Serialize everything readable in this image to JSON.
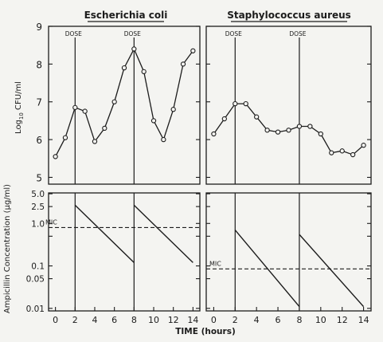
{
  "chart_data": [
    {
      "type": "line",
      "title": "Escherichia coli",
      "ylabel": "Log10 CFU/ml",
      "ylabel_parts": [
        "Log",
        "10",
        " CFU/ml"
      ],
      "ylim": [
        5,
        9
      ],
      "yticks": [
        5,
        6,
        7,
        8,
        9
      ],
      "xlim": [
        0,
        14
      ],
      "annotations": [
        "DOSE",
        "DOSE"
      ],
      "dose_x": [
        2,
        8
      ],
      "series": [
        {
          "x": [
            0,
            1,
            2,
            3,
            4,
            5,
            6,
            7,
            8,
            9,
            10,
            11,
            12,
            13,
            14
          ],
          "values": [
            5.55,
            6.05,
            6.85,
            6.75,
            5.95,
            6.3,
            7.0,
            7.9,
            8.4,
            7.8,
            6.5,
            6.0,
            6.8,
            8.0,
            8.35
          ]
        }
      ]
    },
    {
      "type": "line",
      "title": "Staphylococcus aureus",
      "ylim": [
        5,
        9
      ],
      "xlim": [
        0,
        14
      ],
      "annotations": [
        "DOSE",
        "DOSE"
      ],
      "dose_x": [
        2,
        8
      ],
      "series": [
        {
          "x": [
            0,
            1,
            2,
            3,
            4,
            5,
            6,
            7,
            8,
            9,
            10,
            11,
            12,
            13,
            14
          ],
          "values": [
            6.15,
            6.55,
            6.95,
            6.95,
            6.6,
            6.25,
            6.2,
            6.25,
            6.35,
            6.35,
            6.15,
            5.65,
            5.7,
            5.6,
            5.85
          ]
        }
      ]
    },
    {
      "type": "line",
      "ylabel": "Ampicillin Concentration (µg/ml)",
      "yscale": "log",
      "ylim": [
        0.01,
        5.0
      ],
      "yticks": [
        0.01,
        0.05,
        0.1,
        1.0,
        2.5,
        5.0
      ],
      "ytick_labels": [
        "0.01",
        "0.05",
        "0.1",
        "1.0",
        "2.5",
        "5.0"
      ],
      "xlabel": "TIME (hours)",
      "xlim": [
        0,
        14
      ],
      "xticks": [
        0,
        2,
        4,
        6,
        8,
        10,
        12,
        14
      ],
      "annotations": [
        "MIC"
      ],
      "mic": 0.8,
      "series": [
        {
          "x": [
            2,
            8
          ],
          "values": [
            2.7,
            0.12
          ]
        },
        {
          "x": [
            8,
            14
          ],
          "values": [
            2.7,
            0.12
          ]
        }
      ]
    },
    {
      "type": "line",
      "yscale": "log",
      "ylim": [
        0.01,
        5.0
      ],
      "xlabel": "TIME (hours)",
      "xlim": [
        0,
        14
      ],
      "xticks": [
        0,
        2,
        4,
        6,
        8,
        10,
        12,
        14
      ],
      "annotations": [
        "MIC"
      ],
      "mic": 0.085,
      "series": [
        {
          "x": [
            2,
            8
          ],
          "values": [
            0.7,
            0.011
          ]
        },
        {
          "x": [
            8,
            14
          ],
          "values": [
            0.55,
            0.011
          ]
        }
      ]
    }
  ]
}
